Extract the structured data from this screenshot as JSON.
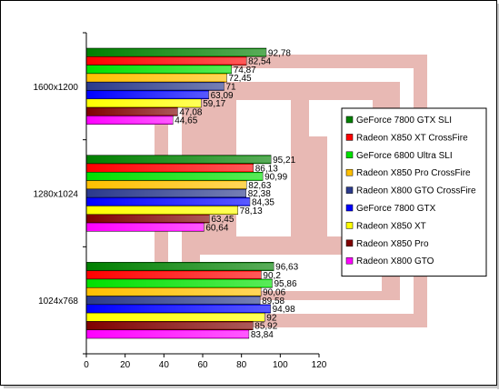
{
  "chart_data": {
    "type": "bar",
    "orientation": "horizontal",
    "title": "",
    "xlabel": "",
    "ylabel": "",
    "xlim": [
      0,
      120
    ],
    "x_ticks": [
      "0",
      "20",
      "40",
      "60",
      "80",
      "100",
      "120"
    ],
    "categories": [
      "1600x1200",
      "1280x1024",
      "1024x768"
    ],
    "legend_position": "right",
    "grid": false,
    "series": [
      {
        "name": "GeForce 7800 GTX SLI",
        "color": "#008000",
        "values": [
          92.78,
          95.21,
          96.63
        ],
        "labels": [
          "92,78",
          "95,21",
          "96,63"
        ]
      },
      {
        "name": "Radeon X850 XT CrossFire",
        "color": "#ff0000",
        "values": [
          82.54,
          86.13,
          90.2
        ],
        "labels": [
          "82,54",
          "86,13",
          "90,2"
        ]
      },
      {
        "name": "GeForce 6800 Ultra SLI",
        "color": "#00e000",
        "values": [
          74.87,
          90.99,
          95.86
        ],
        "labels": [
          "74,87",
          "90,99",
          "95,86"
        ]
      },
      {
        "name": "Radeon X850 Pro CrossFire",
        "color": "#ffc000",
        "values": [
          72.45,
          82.63,
          90.06
        ],
        "labels": [
          "72,45",
          "82,63",
          "90,06"
        ]
      },
      {
        "name": "Radeon X800 GTO CrossFire",
        "color": "#2b3a8c",
        "values": [
          71,
          82.38,
          89.58
        ],
        "labels": [
          "71",
          "82,38",
          "89,58"
        ]
      },
      {
        "name": "GeForce 7800 GTX",
        "color": "#0000ff",
        "values": [
          63.09,
          84.35,
          94.98
        ],
        "labels": [
          "63,09",
          "84,35",
          "94,98"
        ]
      },
      {
        "name": "Radeon X850 XT",
        "color": "#ffff00",
        "values": [
          59.17,
          78.13,
          92
        ],
        "labels": [
          "59,17",
          "78,13",
          "92"
        ]
      },
      {
        "name": "Radeon X850 Pro",
        "color": "#800000",
        "values": [
          47.08,
          63.45,
          85.92
        ],
        "labels": [
          "47,08",
          "63,45",
          "85,92"
        ]
      },
      {
        "name": "Radeon X800 GTO",
        "color": "#ff00ff",
        "values": [
          44.65,
          60.64,
          83.84
        ],
        "labels": [
          "44,65",
          "60,64",
          "83,84"
        ]
      }
    ]
  }
}
